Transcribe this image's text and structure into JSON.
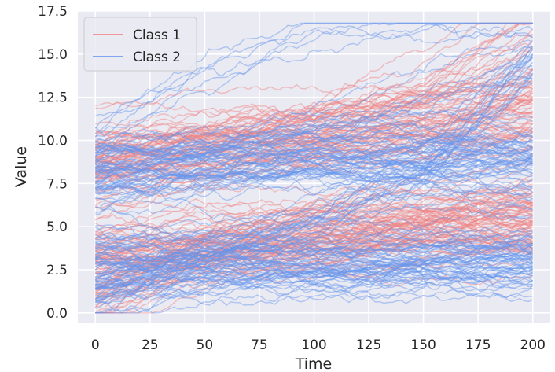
{
  "chart_data": {
    "type": "line",
    "title": "",
    "xlabel": "Time",
    "ylabel": "Value",
    "xlim": [
      -8,
      208
    ],
    "ylim": [
      -0.6,
      17.5
    ],
    "xticks": [
      0,
      25,
      50,
      75,
      100,
      125,
      150,
      175,
      200
    ],
    "xtick_labels": [
      "0",
      "25",
      "50",
      "75",
      "100",
      "125",
      "150",
      "175",
      "200"
    ],
    "yticks": [
      0.0,
      2.5,
      5.0,
      7.5,
      10.0,
      12.5,
      15.0,
      17.5
    ],
    "ytick_labels": [
      "0.0",
      "2.5",
      "5.0",
      "7.5",
      "10.0",
      "12.5",
      "15.0",
      "17.5"
    ],
    "grid": true,
    "legend_position": "top-left",
    "series": [
      {
        "name": "Class 1",
        "color": "#f08080",
        "opacity": 0.45,
        "line_count": 150,
        "x_range": [
          0,
          200
        ],
        "representative_trajectories": [
          {
            "x": [
              0,
              50,
              100,
              150,
              200
            ],
            "y": [
              9.5,
              9.8,
              10.4,
              11.0,
              12.0
            ]
          },
          {
            "x": [
              0,
              50,
              100,
              150,
              200
            ],
            "y": [
              8.0,
              9.2,
              10.0,
              10.8,
              11.0
            ]
          },
          {
            "x": [
              0,
              50,
              100,
              150,
              200
            ],
            "y": [
              7.5,
              9.5,
              10.5,
              12.5,
              16.5
            ]
          },
          {
            "x": [
              0,
              50,
              100,
              150,
              200
            ],
            "y": [
              3.5,
              4.0,
              4.5,
              4.8,
              5.0
            ]
          },
          {
            "x": [
              0,
              50,
              100,
              150,
              200
            ],
            "y": [
              1.0,
              3.5,
              4.5,
              6.0,
              8.0
            ]
          },
          {
            "x": [
              0,
              50,
              100,
              150,
              200
            ],
            "y": [
              0.2,
              3.0,
              4.2,
              5.0,
              5.5
            ]
          }
        ]
      },
      {
        "name": "Class 2",
        "color": "#6495ed",
        "opacity": 0.45,
        "line_count": 150,
        "x_range": [
          0,
          200
        ],
        "representative_trajectories": [
          {
            "x": [
              0,
              50,
              100,
              150,
              200
            ],
            "y": [
              8.5,
              8.8,
              9.2,
              9.3,
              9.0
            ]
          },
          {
            "x": [
              0,
              50,
              100,
              150,
              200
            ],
            "y": [
              9.5,
              13.0,
              15.0,
              15.5,
              16.0
            ]
          },
          {
            "x": [
              0,
              50,
              100,
              150,
              200
            ],
            "y": [
              7.5,
              9.5,
              11.0,
              13.0,
              15.0
            ]
          },
          {
            "x": [
              0,
              50,
              100,
              150,
              200
            ],
            "y": [
              2.5,
              2.8,
              3.0,
              3.0,
              3.0
            ]
          },
          {
            "x": [
              0,
              50,
              100,
              150,
              200
            ],
            "y": [
              4.0,
              3.0,
              2.5,
              2.8,
              2.5
            ]
          },
          {
            "x": [
              0,
              50,
              100,
              150,
              200
            ],
            "y": [
              0.8,
              3.5,
              5.5,
              8.0,
              14.5
            ]
          }
        ]
      }
    ]
  }
}
